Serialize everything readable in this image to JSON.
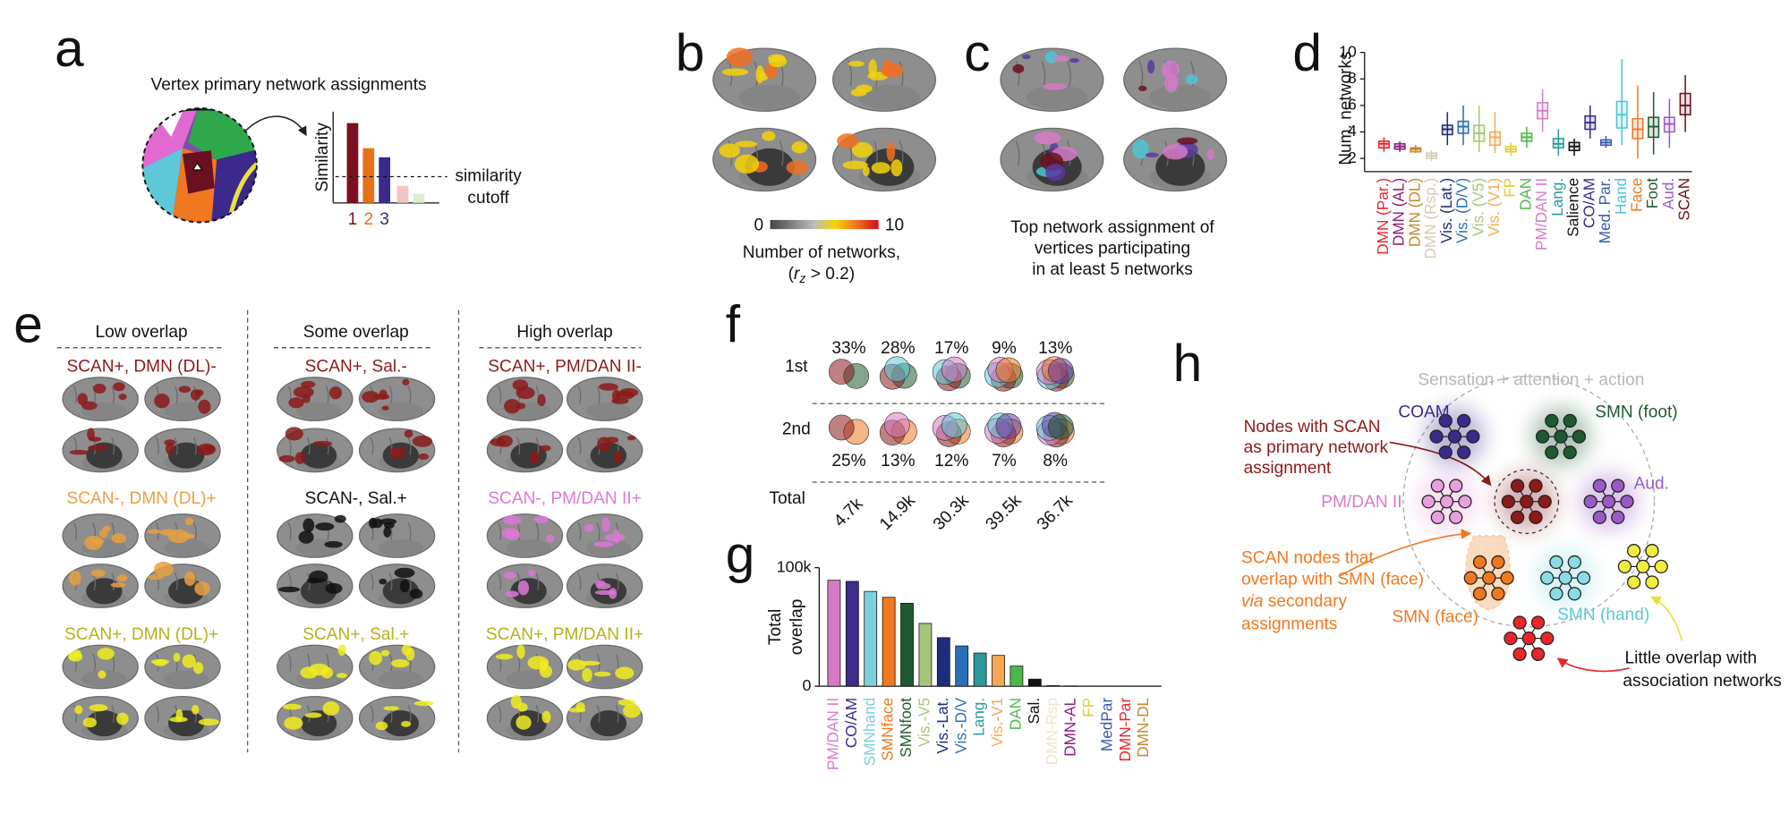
{
  "panels": {
    "a": {
      "letter": "a",
      "title": "Vertex primary network assignments",
      "y_label": "Similarity",
      "ranks": [
        "1",
        "2",
        "3"
      ],
      "cutoff": [
        "similarity",
        "cutoff"
      ]
    },
    "b": {
      "letter": "b",
      "scale_min": "0",
      "scale_max": "10",
      "caption": "Number of networks,",
      "condition": {
        "open": "(",
        "var": "r",
        "sub": "z",
        "rest": " > 0.2)"
      }
    },
    "c": {
      "letter": "c",
      "caption": [
        "Top network assignment of",
        "vertices participating",
        "in at least 5 networks"
      ]
    },
    "d": {
      "letter": "d"
    },
    "e": {
      "letter": "e",
      "columns": [
        {
          "header": "Low overlap",
          "rows": [
            "SCAN+, DMN (DL)-",
            "SCAN-, DMN (DL)+",
            "SCAN+, DMN (DL)+"
          ],
          "colors": [
            "#8b1a1a",
            "#e8a040",
            "#b5b01e"
          ]
        },
        {
          "header": "Some overlap",
          "rows": [
            "SCAN+, Sal.-",
            "SCAN-, Sal.+",
            "SCAN+, Sal.+"
          ],
          "colors": [
            "#8b1a1a",
            "#111111",
            "#b5b01e"
          ]
        },
        {
          "header": "High overlap",
          "rows": [
            "SCAN+, PM/DAN II-",
            "SCAN-, PM/DAN II+",
            "SCAN+, PM/DAN II+"
          ],
          "colors": [
            "#8b1a1a",
            "#dc78d4",
            "#b5b01e"
          ]
        }
      ]
    },
    "f": {
      "letter": "f",
      "row_labels": [
        "1st",
        "2nd",
        "Total"
      ],
      "first": [
        "33%",
        "28%",
        "17%",
        "9%",
        "13%"
      ],
      "second": [
        "25%",
        "13%",
        "12%",
        "7%",
        "8%"
      ],
      "totals": [
        "4.7k",
        "14.9k",
        "30.3k",
        "39.5k",
        "36.7k"
      ]
    },
    "g": {
      "letter": "g"
    },
    "h": {
      "letter": "h",
      "outer": "Sensation + attention + action",
      "networks": [
        {
          "name": "COAM",
          "color": "#3b2a8c"
        },
        {
          "name": "SMN (foot)",
          "color": "#1e5a30"
        },
        {
          "name": "Aud.",
          "color": "#9a5ac6"
        },
        {
          "name": "PM/DAN II",
          "color": "#d57bc6"
        },
        {
          "name": "SMN (face)",
          "color": "#f07820"
        },
        {
          "name": "SMN (hand)",
          "color": "#5ec8d8"
        }
      ],
      "scan_note": [
        "Nodes with SCAN",
        "as primary network",
        "assignment"
      ],
      "face_note": {
        "line1": "SCAN nodes that",
        "line2": "overlap with SMN (face)",
        "line3_italic": "via",
        "line3_rest": " secondary",
        "line4": "assignments"
      },
      "little_note": [
        "Little overlap with",
        "association networks"
      ]
    }
  },
  "chart_data": [
    {
      "type": "box",
      "y_label": "Num. networks",
      "categories": [
        "DMN (Par.)",
        "DMN (AL)",
        "DMN (DL)",
        "DMN (Rsp.)",
        "Vis. (Lat.)",
        "Vis. (D/V)",
        "Vis. (V5)",
        "Vis. (V1)",
        "FP",
        "DAN",
        "PM/DAN II",
        "Lang.",
        "Salience",
        "CO/AM",
        "Med. Par.",
        "Hand",
        "Face",
        "Foot",
        "Aud.",
        "SCAN"
      ],
      "colors": [
        "#e8262b",
        "#8b1a7a",
        "#c8872a",
        "#d4cbb0",
        "#1f2e7a",
        "#2a6fb5",
        "#a8c47a",
        "#f5a850",
        "#e0d030",
        "#4cb84a",
        "#d57bc6",
        "#2a9a9a",
        "#111111",
        "#3e2a8a",
        "#3a5ab0",
        "#4cc6d6",
        "#f07820",
        "#1e5a30",
        "#9a5ac6",
        "#6a1020"
      ],
      "median": [
        3.1,
        2.9,
        2.7,
        2.2,
        4.2,
        4.4,
        3.9,
        3.6,
        2.7,
        3.6,
        5.6,
        3.1,
        2.9,
        4.7,
        3.2,
        5.3,
        4.2,
        4.4,
        4.6,
        6.0
      ],
      "q1": [
        2.8,
        2.7,
        2.5,
        2.0,
        3.8,
        3.9,
        3.3,
        3.0,
        2.5,
        3.3,
        5.0,
        2.8,
        2.6,
        4.2,
        3.0,
        4.3,
        3.5,
        3.6,
        4.0,
        5.3
      ],
      "q3": [
        3.3,
        3.1,
        2.8,
        2.4,
        4.5,
        4.8,
        4.5,
        4.0,
        2.9,
        3.9,
        6.2,
        3.5,
        3.2,
        5.2,
        3.4,
        6.3,
        5.0,
        5.1,
        5.1,
        6.9
      ],
      "whisker_low": [
        2.5,
        2.5,
        2.4,
        1.8,
        3.0,
        3.0,
        2.5,
        2.4,
        2.2,
        2.8,
        4.0,
        2.2,
        2.2,
        3.5,
        2.8,
        3.0,
        2.0,
        2.3,
        2.8,
        4.0
      ],
      "whisker_high": [
        3.6,
        3.3,
        3.0,
        2.6,
        5.5,
        6.0,
        6.0,
        5.5,
        3.2,
        4.4,
        7.2,
        4.2,
        3.5,
        6.0,
        3.7,
        9.5,
        7.5,
        7.0,
        6.5,
        8.3
      ],
      "ylim": [
        1,
        10
      ],
      "yticks": [
        2,
        4,
        6,
        8,
        10
      ]
    },
    {
      "type": "bar",
      "y_label": [
        "Total",
        "overlap"
      ],
      "categories": [
        "PM/DAN II",
        "CO/AM",
        "SMNhand",
        "SMNface",
        "SMNfoot",
        "Vis.-V5",
        "Vis.-Lat.",
        "Vis.-D/V",
        "Lang.",
        "Vis.-V1",
        "DAN",
        "Sal.",
        "DMN-Rsp",
        "DMN-AL",
        "FP",
        "MedPar",
        "DMN-Par",
        "DMN-DL"
      ],
      "colors": [
        "#d57bc6",
        "#3e2a8a",
        "#7cd0dc",
        "#f07820",
        "#1e5a30",
        "#a8c47a",
        "#1f2e7a",
        "#2a6fb5",
        "#2a9a9a",
        "#f5a850",
        "#4cb84a",
        "#111111",
        "#ece6c8",
        "#8b1a7a",
        "#e0d030",
        "#3a5ab0",
        "#e8262b",
        "#c8872a"
      ],
      "values": [
        89400,
        88500,
        80000,
        75000,
        70000,
        53000,
        41000,
        34000,
        28000,
        26000,
        17000,
        6000,
        500,
        300,
        200,
        200,
        100,
        100
      ],
      "ylim": [
        0,
        100000
      ],
      "yticks": [
        0,
        {
          "value": 100000,
          "label": "100k"
        }
      ]
    }
  ]
}
